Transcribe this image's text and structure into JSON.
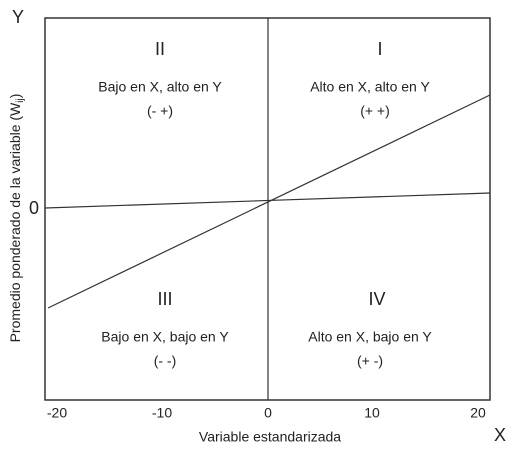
{
  "axes": {
    "y_name": "Y",
    "x_name": "X",
    "y_origin": "0",
    "x_ticks": [
      "-20",
      "-10",
      "0",
      "10",
      "20"
    ],
    "x_label": "Variable estandarizada",
    "y_label": {
      "main": "Promedio ponderado de la variable (W",
      "sub": "ij",
      "end": ")"
    }
  },
  "quadrants": [
    {
      "numeral": "II",
      "description": "Bajo en X, alto en Y",
      "signs": "(- +)"
    },
    {
      "numeral": "I",
      "description": "Alto en X, alto en Y",
      "signs": "(+ +)"
    },
    {
      "numeral": "III",
      "description": "Bajo en X, bajo en Y",
      "signs": "(- -)"
    },
    {
      "numeral": "IV",
      "description": "Alto en X, bajo en Y",
      "signs": "(+ -)"
    }
  ]
}
